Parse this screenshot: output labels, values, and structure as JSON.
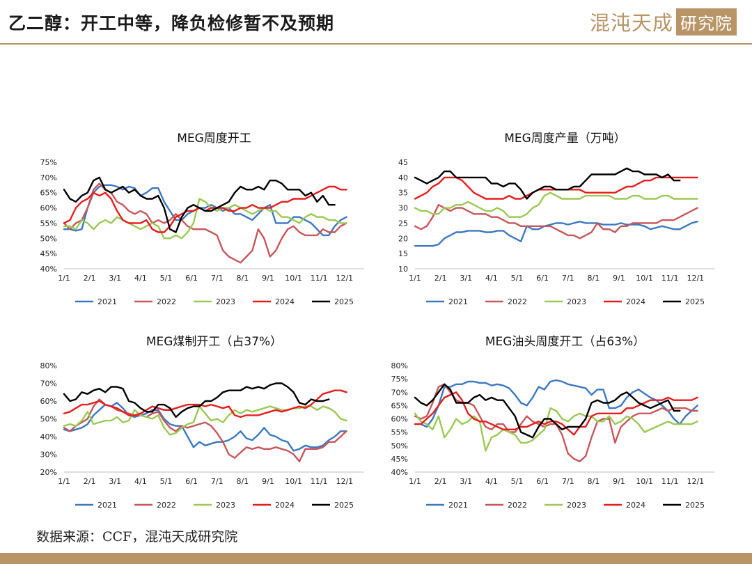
{
  "header": {
    "title": "乙二醇：开工中等，降负检修暂不及预期",
    "logo_text": "混沌天成",
    "logo_box_text": "研究院"
  },
  "source": "数据来源：CCF，混沌天成研究院",
  "colors": {
    "2021": "#3b78c2",
    "2022": "#c8565a",
    "2023": "#9ac954",
    "2024": "#e81c1c",
    "2025": "#000000",
    "accent": "#b89466"
  },
  "chart_data": [
    {
      "type": "line",
      "title": "MEG周度开工",
      "xticks": [
        "1/1",
        "2/1",
        "3/1",
        "4/1",
        "5/1",
        "6/1",
        "7/1",
        "8/1",
        "9/1",
        "10/1",
        "11/1",
        "12/1"
      ],
      "yticks": [
        "40%",
        "45%",
        "50%",
        "55%",
        "60%",
        "65%",
        "70%",
        "75%"
      ],
      "ylim": [
        40,
        75
      ],
      "series": [
        {
          "name": "2021",
          "values": [
            53,
            53,
            52.5,
            53,
            60,
            65,
            67,
            67.5,
            67.5,
            67,
            66,
            67,
            66.5,
            64,
            65,
            66.5,
            66.5,
            62,
            59,
            56,
            56,
            58,
            59,
            60,
            60,
            61,
            60,
            59,
            60,
            58,
            58,
            57,
            56,
            58,
            60,
            61,
            55,
            55,
            55,
            57,
            57,
            56,
            55,
            53,
            51,
            51,
            54,
            56,
            57
          ]
        },
        {
          "name": "2022",
          "values": [
            55,
            53,
            55,
            56,
            60,
            66,
            68,
            66,
            65,
            62,
            61,
            59,
            58,
            59,
            58,
            55,
            56,
            55,
            56,
            58,
            56,
            54,
            53,
            53,
            53,
            52,
            51,
            46,
            44,
            43,
            42,
            44,
            46,
            53,
            50,
            44,
            46,
            50,
            53,
            54,
            52,
            51,
            51,
            51,
            53,
            52,
            52,
            54,
            55
          ]
        },
        {
          "name": "2023",
          "values": [
            54,
            54,
            53,
            56,
            55,
            53,
            55,
            56,
            55,
            57,
            56,
            55,
            54,
            53,
            54,
            55,
            54,
            50,
            50,
            51,
            50,
            52,
            55,
            63,
            62,
            60,
            59,
            60,
            60,
            61,
            60,
            59,
            58,
            59,
            60,
            59,
            59,
            57,
            57,
            56,
            55,
            57,
            58,
            57,
            57,
            56,
            56,
            55,
            55
          ]
        },
        {
          "name": "2024",
          "values": [
            55,
            56,
            60,
            62,
            63,
            65,
            64,
            65,
            63,
            59,
            56,
            55,
            55,
            55,
            56,
            53,
            52,
            52,
            54,
            57,
            58,
            59,
            59,
            60,
            59,
            60,
            60,
            60,
            59,
            59,
            60,
            60,
            61,
            60,
            60,
            60,
            61,
            62,
            62,
            63,
            63,
            63,
            64,
            65,
            66,
            67,
            67,
            66,
            66
          ]
        },
        {
          "name": "2025",
          "values": [
            66,
            63,
            62,
            64,
            65,
            69,
            70,
            66,
            65,
            66,
            67,
            65,
            66,
            64,
            63,
            63,
            64,
            60,
            53,
            52,
            57,
            60,
            61,
            60,
            59,
            59,
            60,
            61,
            62,
            65,
            67,
            66,
            66,
            67,
            66,
            69,
            69,
            68,
            66,
            66,
            66,
            64,
            65,
            62,
            64,
            61,
            61
          ]
        }
      ]
    },
    {
      "type": "line",
      "title": "MEG周度产量（万吨）",
      "xticks": [
        "1/1",
        "2/1",
        "3/1",
        "4/1",
        "5/1",
        "6/1",
        "7/1",
        "8/1",
        "9/1",
        "10/1",
        "11/1",
        "12/1"
      ],
      "yticks": [
        "10",
        "15",
        "20",
        "25",
        "30",
        "35",
        "40",
        "45"
      ],
      "ylim": [
        10,
        45
      ],
      "series": [
        {
          "name": "2021",
          "values": [
            17.5,
            17.5,
            17.5,
            17.5,
            18,
            20,
            21,
            22,
            22,
            22.5,
            22.5,
            22.5,
            22,
            22,
            22.5,
            22.5,
            21,
            20,
            19,
            24,
            23,
            23,
            24,
            24.5,
            25,
            25,
            24.5,
            25,
            25.5,
            25,
            25,
            25,
            24.5,
            24.5,
            24.5,
            25,
            24.5,
            24.5,
            24.5,
            24,
            23,
            23.5,
            24,
            23.5,
            23,
            23,
            24,
            25,
            25.5
          ]
        },
        {
          "name": "2022",
          "values": [
            24,
            23,
            24,
            27,
            31,
            30,
            29,
            30,
            30,
            29,
            28,
            28,
            28,
            27,
            27,
            26,
            25,
            25,
            24,
            24,
            24,
            24,
            24,
            24,
            23,
            22,
            21,
            21,
            20,
            21,
            22,
            25,
            23,
            23,
            22,
            24,
            24,
            25,
            25,
            25,
            25,
            25,
            26,
            26,
            26,
            27,
            28,
            29,
            30
          ]
        },
        {
          "name": "2023",
          "values": [
            30,
            29,
            29,
            28,
            28,
            30,
            30,
            31,
            31,
            32,
            31,
            30,
            29,
            29,
            30,
            29,
            27,
            27,
            27,
            28,
            30,
            31,
            34,
            35,
            34,
            33,
            33,
            33,
            33,
            34,
            34,
            34,
            34,
            34,
            33,
            33,
            33,
            34,
            34,
            33,
            33,
            33,
            34,
            34,
            33,
            33,
            33,
            33,
            33
          ]
        },
        {
          "name": "2024",
          "values": [
            33,
            34,
            35,
            37,
            38,
            40,
            40,
            40,
            39,
            37,
            35,
            34,
            33,
            33,
            33,
            33,
            34,
            33,
            33,
            34,
            35,
            36,
            36,
            36,
            36,
            36,
            36,
            36,
            36,
            35,
            35,
            35,
            35,
            35,
            35,
            36,
            37,
            37,
            38,
            39,
            39,
            40,
            40,
            40,
            40,
            40,
            40,
            40,
            40
          ]
        },
        {
          "name": "2025",
          "values": [
            40,
            39,
            38,
            39,
            40,
            42,
            42,
            40,
            40,
            40,
            40,
            40,
            40,
            38,
            38,
            37,
            38,
            38,
            36,
            33,
            35,
            36,
            37,
            37,
            36,
            36,
            36,
            37,
            37,
            39,
            41,
            41,
            41,
            41,
            41,
            42,
            43,
            42,
            42,
            41,
            41,
            41,
            40,
            41,
            39,
            39
          ]
        }
      ]
    },
    {
      "type": "line",
      "title": "MEG煤制开工（占37%）",
      "xticks": [
        "1/1",
        "2/1",
        "3/1",
        "4/1",
        "5/1",
        "6/1",
        "7/1",
        "8/1",
        "9/1",
        "10/1",
        "11/1",
        "12/1"
      ],
      "yticks": [
        "20%",
        "30%",
        "40%",
        "50%",
        "60%",
        "70%",
        "80%"
      ],
      "ylim": [
        20,
        80
      ],
      "series": [
        {
          "name": "2021",
          "values": [
            44,
            43,
            44,
            45,
            47,
            52,
            55,
            58,
            57,
            59,
            56,
            52,
            51,
            52,
            53,
            55,
            55,
            50,
            47,
            46,
            46,
            40,
            34,
            37,
            35,
            36,
            37,
            37,
            38,
            40,
            43,
            39,
            38,
            41,
            45,
            41,
            40,
            38,
            37,
            32,
            33,
            35,
            34,
            34,
            35,
            38,
            40,
            43,
            43
          ]
        },
        {
          "name": "2022",
          "values": [
            45,
            43,
            46,
            48,
            50,
            57,
            61,
            58,
            57,
            55,
            54,
            53,
            52,
            52,
            51,
            53,
            54,
            49,
            45,
            43,
            46,
            45,
            46,
            47,
            48,
            46,
            42,
            37,
            30,
            28,
            31,
            34,
            33,
            34,
            33,
            33,
            34,
            33,
            32,
            30,
            26,
            33,
            33,
            33,
            34,
            37,
            37,
            40,
            43
          ]
        },
        {
          "name": "2023",
          "values": [
            46,
            47,
            46,
            49,
            54,
            47,
            48,
            49,
            49,
            51,
            48,
            49,
            55,
            52,
            51,
            50,
            52,
            45,
            41,
            42,
            45,
            47,
            48,
            57,
            53,
            49,
            50,
            48,
            52,
            55,
            53,
            55,
            54,
            55,
            56,
            57,
            56,
            55,
            55,
            56,
            56,
            57,
            57,
            55,
            57,
            56,
            54,
            50,
            49
          ]
        },
        {
          "name": "2024",
          "values": [
            53,
            54,
            56,
            58,
            58,
            59,
            60,
            58,
            57,
            56,
            54,
            52,
            52,
            53,
            55,
            57,
            56,
            55,
            55,
            56,
            57,
            58,
            58,
            58,
            57,
            58,
            57,
            56,
            57,
            52,
            51,
            52,
            52,
            52,
            53,
            54,
            55,
            54,
            55,
            56,
            57,
            56,
            58,
            61,
            64,
            65,
            66,
            66,
            65
          ]
        },
        {
          "name": "2025",
          "values": [
            64,
            60,
            61,
            65,
            64,
            66,
            67,
            65,
            68,
            68,
            67,
            60,
            59,
            56,
            54,
            54,
            58,
            58,
            56,
            51,
            54,
            56,
            57,
            57,
            60,
            60,
            62,
            65,
            66,
            66,
            66,
            68,
            67,
            68,
            67,
            69,
            70,
            70,
            68,
            65,
            59,
            58,
            61,
            60,
            60,
            61
          ]
        }
      ]
    },
    {
      "type": "line",
      "title": "MEG油头周度开工（占63%）",
      "xticks": [
        "1/1",
        "2/1",
        "3/1",
        "4/1",
        "5/1",
        "6/1",
        "7/1",
        "8/1",
        "9/1",
        "10/1",
        "11/1",
        "12/1"
      ],
      "yticks": [
        "40%",
        "45%",
        "50%",
        "55%",
        "60%",
        "65%",
        "70%",
        "75%",
        "80%"
      ],
      "ylim": [
        40,
        80
      ],
      "series": [
        {
          "name": "2021",
          "values": [
            58,
            58,
            57,
            60,
            65,
            72,
            72,
            73,
            73,
            74,
            74,
            73.5,
            73.5,
            72.5,
            73,
            72.5,
            71.5,
            69,
            66,
            65,
            68,
            72,
            71,
            74,
            74.5,
            74,
            73,
            72.5,
            72,
            71.5,
            69,
            71,
            71,
            64,
            64,
            65,
            68,
            70,
            71,
            69.5,
            68,
            67,
            65,
            63,
            60,
            58,
            61,
            63,
            65
          ]
        },
        {
          "name": "2022",
          "values": [
            61,
            60,
            61,
            66,
            72,
            73,
            70,
            67,
            66,
            66,
            65,
            61,
            57,
            56,
            58,
            58,
            55,
            55,
            58,
            61,
            59,
            58,
            57,
            58,
            58,
            54,
            47,
            45,
            44,
            46,
            53,
            59,
            60,
            60,
            51,
            57,
            59,
            61,
            62,
            62,
            62,
            63,
            64,
            63,
            64,
            64,
            64,
            63,
            63
          ]
        },
        {
          "name": "2023",
          "values": [
            62,
            59,
            58,
            56,
            61,
            53,
            56,
            60,
            58,
            59,
            61,
            59,
            48,
            53,
            54,
            56,
            55,
            54,
            51,
            51,
            52,
            54,
            56,
            64,
            63,
            60,
            59,
            61,
            62,
            61,
            61,
            59,
            59,
            61,
            58,
            59,
            61,
            60,
            58,
            55,
            56,
            57,
            58,
            59,
            58,
            58,
            58,
            58,
            59
          ]
        },
        {
          "name": "2024",
          "values": [
            58,
            58,
            60,
            62,
            65,
            68,
            69,
            70,
            67,
            62,
            60,
            59,
            59,
            58,
            57,
            56,
            56,
            56,
            57,
            57,
            58,
            59,
            58,
            59,
            59,
            58,
            56,
            54,
            57,
            57,
            61,
            62,
            62,
            62,
            62,
            62,
            64,
            64,
            65,
            66,
            67,
            67,
            67,
            68,
            67,
            67,
            67,
            67,
            68
          ]
        },
        {
          "name": "2025",
          "values": [
            68,
            66,
            65,
            67,
            70,
            73,
            71,
            66,
            66,
            66,
            68,
            69,
            67,
            68,
            67,
            67,
            64,
            61,
            55,
            54,
            53,
            57,
            60,
            60,
            58,
            56,
            57,
            57,
            57,
            60,
            66,
            67,
            66,
            66,
            67,
            69,
            70,
            68,
            66,
            65,
            64,
            65,
            66,
            67,
            63,
            63
          ]
        }
      ]
    }
  ]
}
